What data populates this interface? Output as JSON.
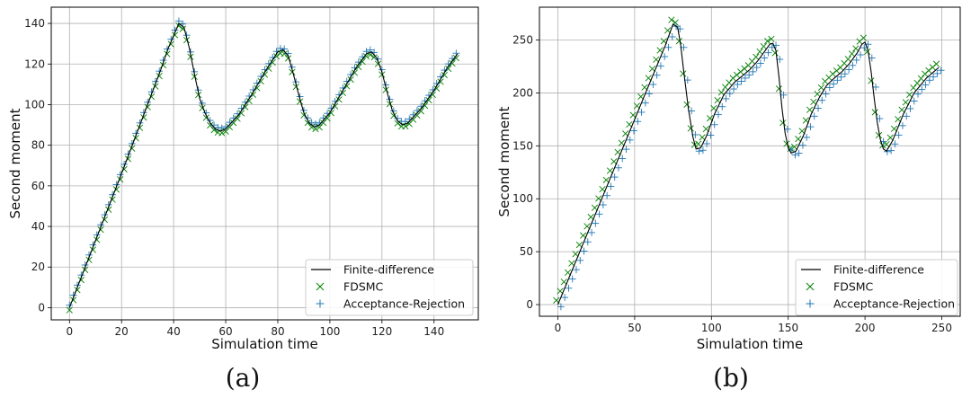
{
  "chart_data": [
    {
      "type": "line",
      "panel_label": "(a)",
      "xlabel": "Simulation time",
      "ylabel": "Second moment",
      "xlim": [
        -7,
        157
      ],
      "ylim": [
        -6,
        148
      ],
      "xticks": [
        0,
        20,
        40,
        60,
        80,
        100,
        120,
        140
      ],
      "yticks": [
        0,
        20,
        40,
        60,
        80,
        100,
        120,
        140
      ],
      "grid": true,
      "legend_position": "bottom-right",
      "series": [
        {
          "name": "Finite-difference",
          "style": "line",
          "color": "#000000",
          "points": [
            [
              0,
              0
            ],
            [
              10,
              33
            ],
            [
              20,
              66
            ],
            [
              30,
              100
            ],
            [
              35,
              117
            ],
            [
              38,
              128
            ],
            [
              40,
              134
            ],
            [
              42,
              140
            ],
            [
              44,
              138
            ],
            [
              46,
              128
            ],
            [
              48,
              115
            ],
            [
              50,
              103
            ],
            [
              52,
              96
            ],
            [
              54,
              91
            ],
            [
              56,
              88
            ],
            [
              58,
              87
            ],
            [
              60,
              88
            ],
            [
              65,
              95
            ],
            [
              70,
              105
            ],
            [
              75,
              116
            ],
            [
              80,
              126
            ],
            [
              82,
              127
            ],
            [
              84,
              124
            ],
            [
              86,
              115
            ],
            [
              88,
              105
            ],
            [
              90,
              96
            ],
            [
              92,
              91
            ],
            [
              94,
              89
            ],
            [
              96,
              90
            ],
            [
              100,
              96
            ],
            [
              105,
              107
            ],
            [
              110,
              118
            ],
            [
              114,
              125
            ],
            [
              116,
              126
            ],
            [
              118,
              123
            ],
            [
              120,
              116
            ],
            [
              122,
              106
            ],
            [
              124,
              97
            ],
            [
              126,
              92
            ],
            [
              128,
              90
            ],
            [
              130,
              91
            ],
            [
              135,
              98
            ],
            [
              140,
              107
            ],
            [
              145,
              118
            ],
            [
              149,
              125
            ]
          ]
        },
        {
          "name": "FDSMC",
          "style": "x-marker",
          "color": "#008000",
          "offset": [
            0,
            -1.2
          ]
        },
        {
          "name": "Acceptance-Rejection",
          "style": "plus-marker",
          "color": "#1f77b4",
          "offset": [
            0,
            1.2
          ]
        }
      ]
    },
    {
      "type": "line",
      "panel_label": "(b)",
      "xlabel": "Simulation time",
      "ylabel": "Second moment",
      "xlim": [
        -12,
        262
      ],
      "ylim": [
        -11,
        281
      ],
      "xticks": [
        0,
        50,
        100,
        150,
        200,
        250
      ],
      "yticks": [
        0,
        50,
        100,
        150,
        200,
        250
      ],
      "grid": true,
      "legend_position": "bottom-right",
      "series": [
        {
          "name": "Finite-difference",
          "style": "line",
          "color": "#000000",
          "points": [
            [
              0,
              0
            ],
            [
              20,
              70
            ],
            [
              40,
              140
            ],
            [
              60,
              210
            ],
            [
              70,
              245
            ],
            [
              75,
              265
            ],
            [
              78,
              262
            ],
            [
              80,
              245
            ],
            [
              82,
              220
            ],
            [
              85,
              185
            ],
            [
              88,
              158
            ],
            [
              90,
              147
            ],
            [
              93,
              148
            ],
            [
              97,
              160
            ],
            [
              102,
              180
            ],
            [
              108,
              198
            ],
            [
              115,
              210
            ],
            [
              120,
              216
            ],
            [
              125,
              222
            ],
            [
              130,
              230
            ],
            [
              135,
              240
            ],
            [
              138,
              246
            ],
            [
              140,
              247
            ],
            [
              142,
              240
            ],
            [
              144,
              215
            ],
            [
              146,
              185
            ],
            [
              148,
              162
            ],
            [
              150,
              148
            ],
            [
              152,
              143
            ],
            [
              155,
              145
            ],
            [
              160,
              160
            ],
            [
              165,
              180
            ],
            [
              170,
              195
            ],
            [
              175,
              207
            ],
            [
              180,
              214
            ],
            [
              185,
              220
            ],
            [
              190,
              228
            ],
            [
              195,
              238
            ],
            [
              198,
              246
            ],
            [
              200,
              248
            ],
            [
              202,
              240
            ],
            [
              204,
              220
            ],
            [
              206,
              195
            ],
            [
              208,
              172
            ],
            [
              210,
              156
            ],
            [
              212,
              147
            ],
            [
              214,
              145
            ],
            [
              218,
              155
            ],
            [
              225,
              180
            ],
            [
              232,
              200
            ],
            [
              240,
              214
            ],
            [
              248,
              224
            ]
          ]
        },
        {
          "name": "FDSMC",
          "style": "x-marker",
          "color": "#008000",
          "offset": [
            -1,
            4
          ]
        },
        {
          "name": "Acceptance-Rejection",
          "style": "plus-marker",
          "color": "#1f77b4",
          "offset": [
            2,
            -2
          ]
        }
      ]
    }
  ]
}
